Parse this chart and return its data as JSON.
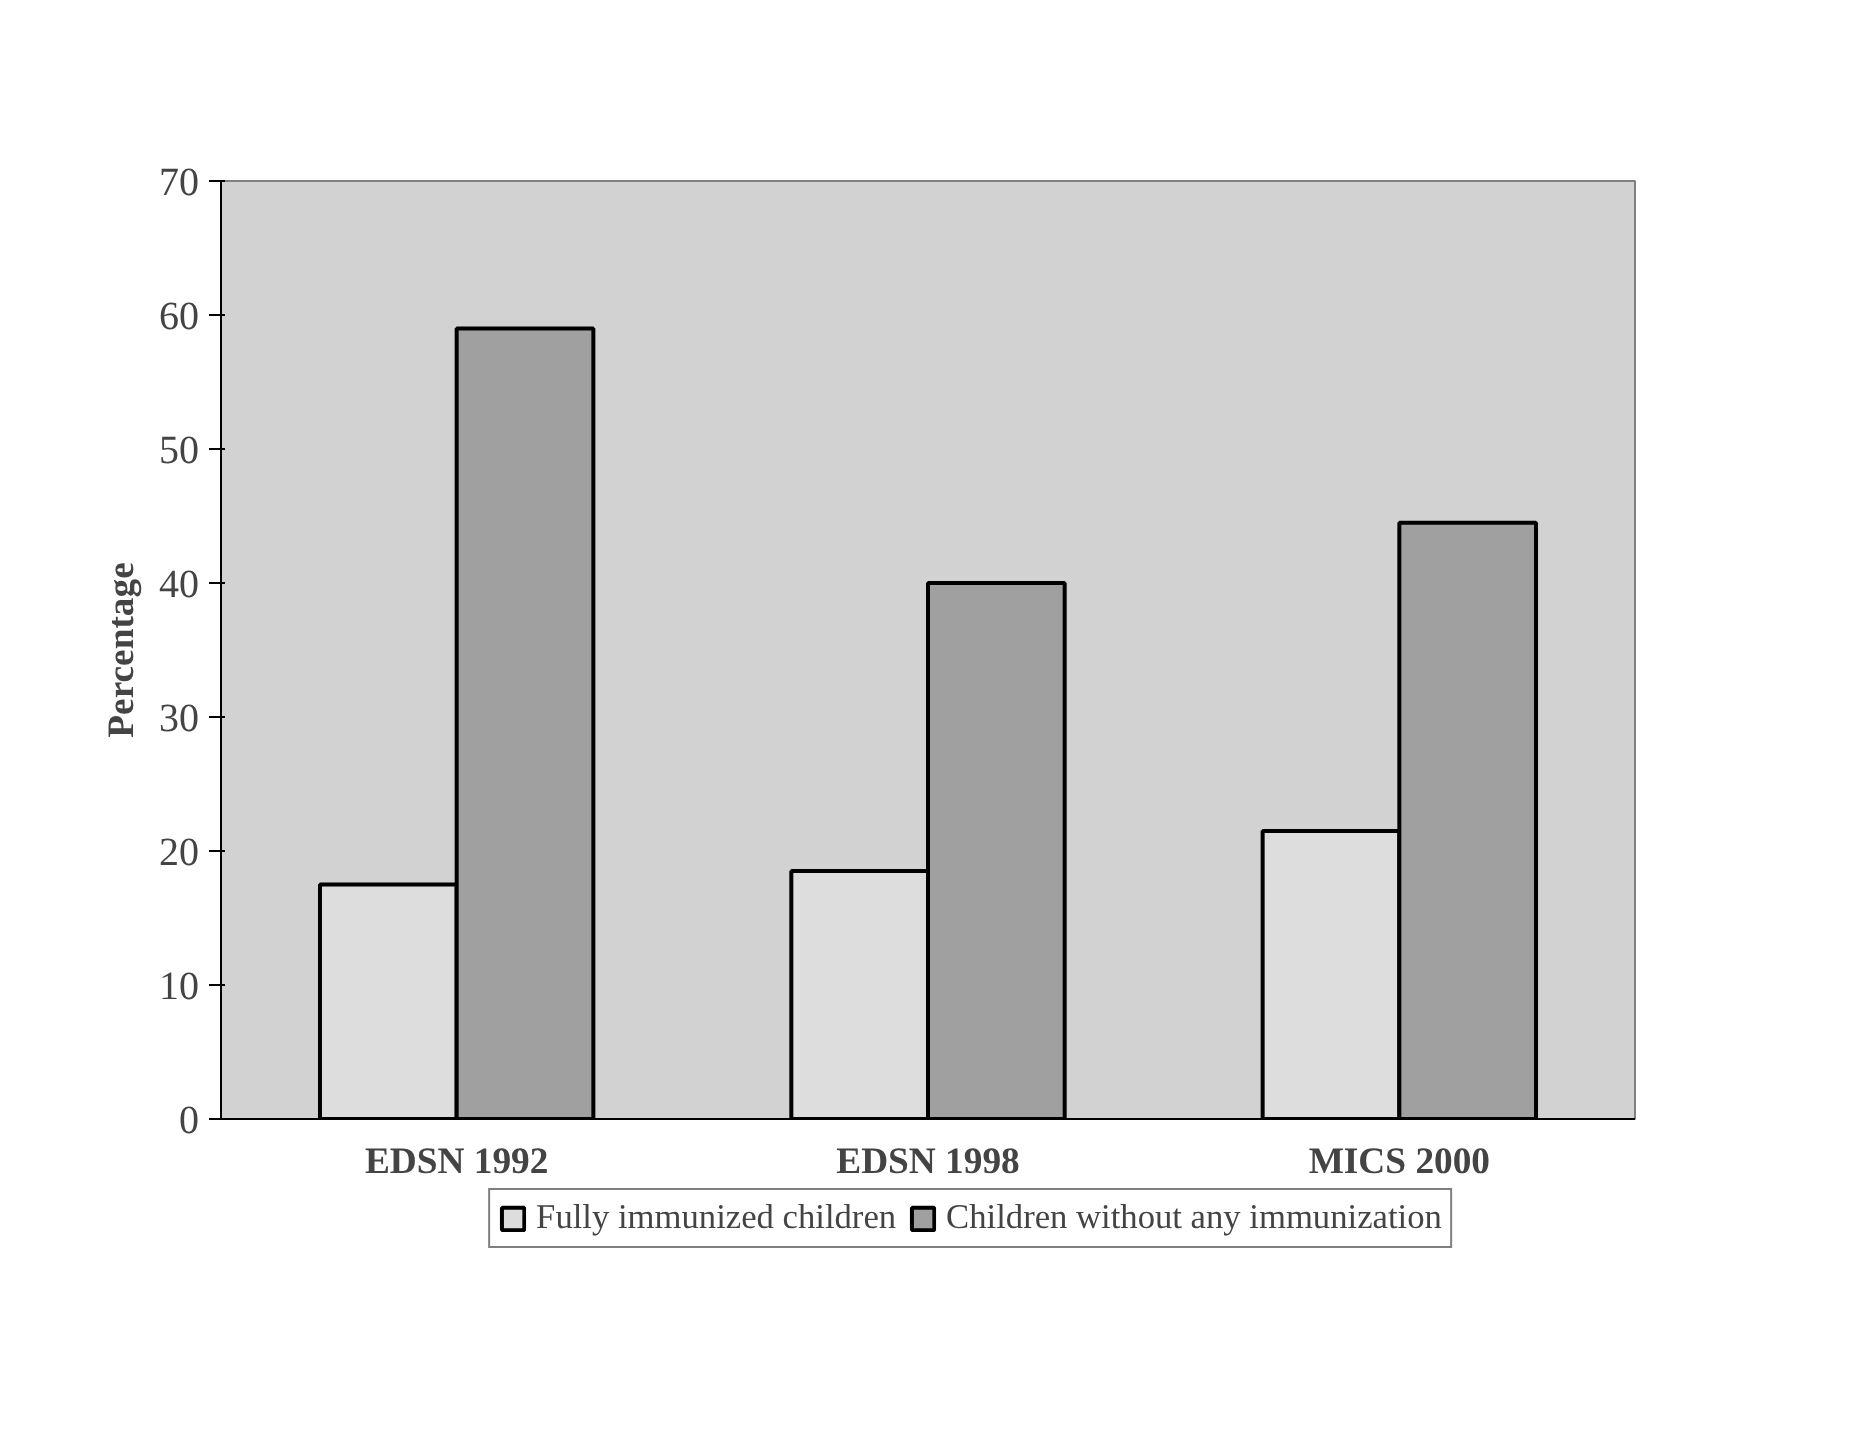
{
  "chart_data": {
    "type": "bar",
    "ylabel": "Percentage",
    "categories": [
      "EDSN 1992",
      "EDSN 1998",
      "MICS 2000"
    ],
    "series": [
      {
        "name": "Fully immunized children",
        "color": "#dddddd",
        "values": [
          17.5,
          18.5,
          21.5
        ]
      },
      {
        "name": "Children without any immunization",
        "color": "#a0a0a0",
        "values": [
          59,
          40,
          44.5
        ]
      }
    ],
    "ylim": [
      0,
      70
    ],
    "yticks": [
      0,
      10,
      20,
      30,
      40,
      50,
      60,
      70
    ],
    "grid": false,
    "legend": "bottom"
  }
}
